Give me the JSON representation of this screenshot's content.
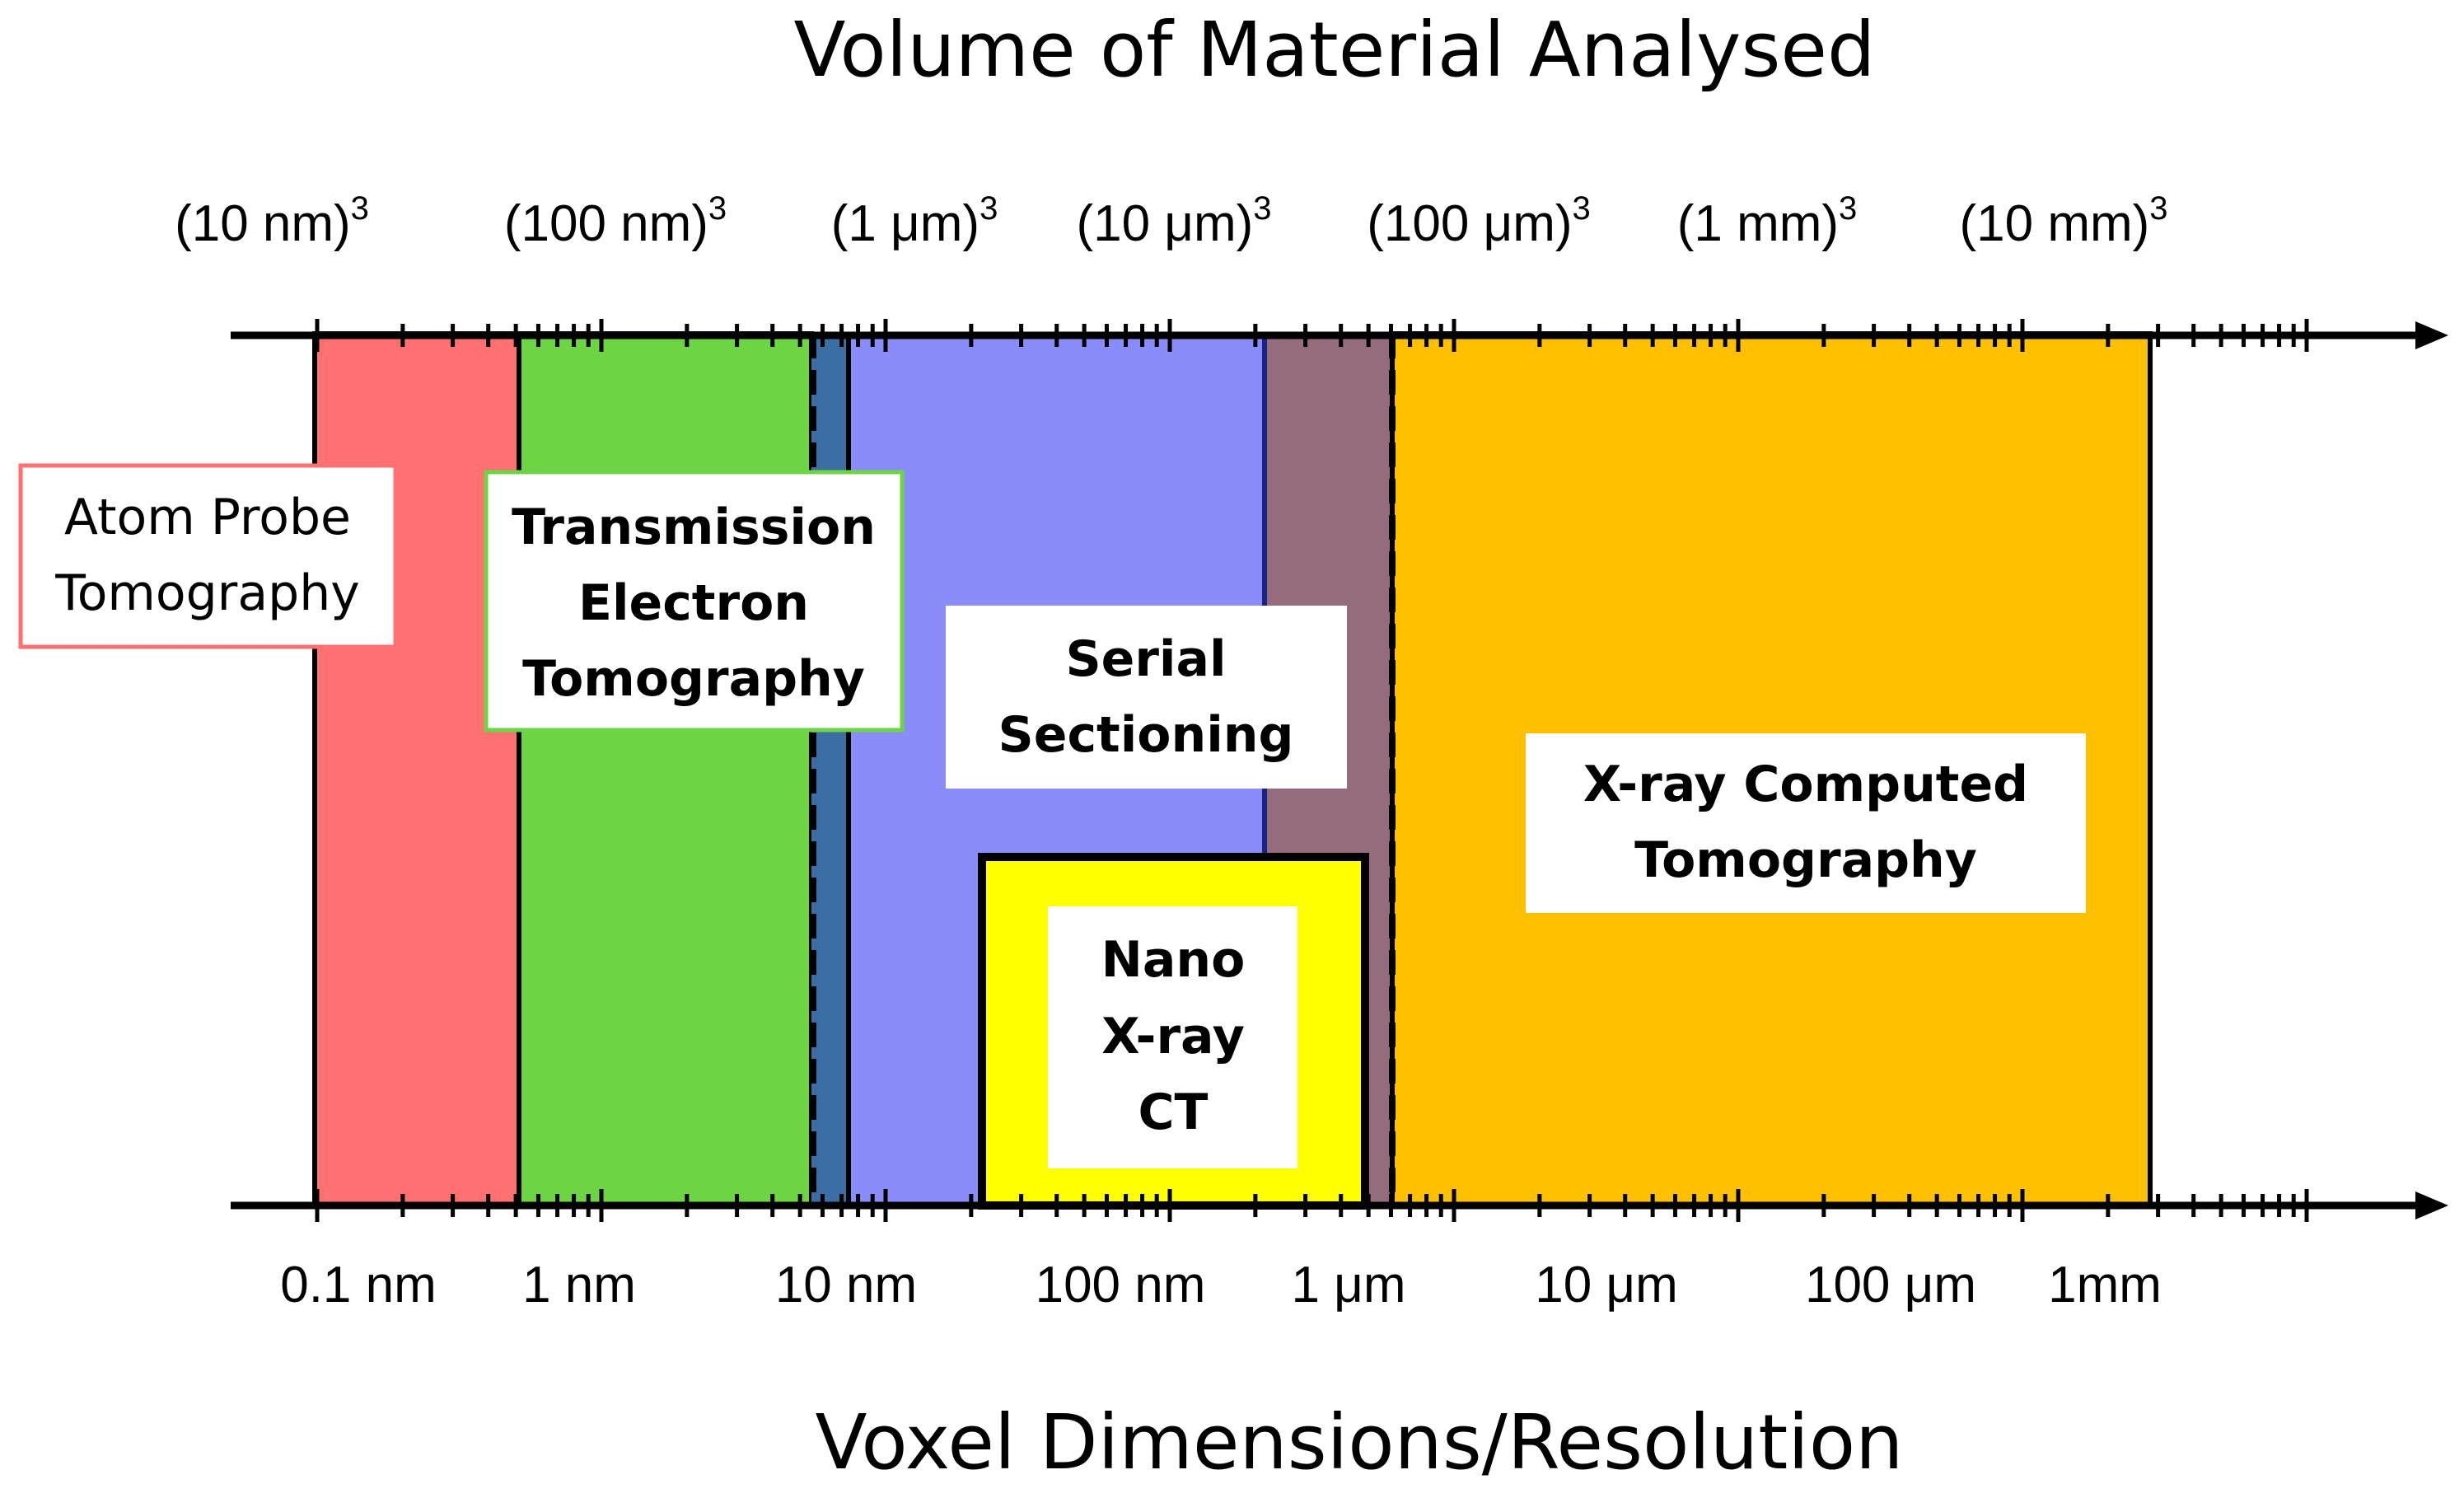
{
  "title_top": "Volume of Material Analysed",
  "title_bottom": "Voxel Dimensions/Resolution",
  "volume_labels": [
    {
      "base": "(10 nm)",
      "exp": "3"
    },
    {
      "base": "(100 nm)",
      "exp": "3"
    },
    {
      "base": "(1 μm)",
      "exp": "3"
    },
    {
      "base": "(10 μm)",
      "exp": "3"
    },
    {
      "base": "(100 μm)",
      "exp": "3"
    },
    {
      "base": "(1 mm)",
      "exp": "3"
    },
    {
      "base": "(10 mm)",
      "exp": "3"
    }
  ],
  "resolution_labels": [
    "0.1 nm",
    "1 nm",
    "10 nm",
    "100 nm",
    "1 μm",
    "10 μm",
    "100 μm",
    "1mm"
  ],
  "techniques": {
    "atom_probe": {
      "lines": [
        "Atom Probe",
        "Tomography"
      ],
      "color": "#ff7070",
      "border": "#ff7070"
    },
    "tem": {
      "lines": [
        "Transmission",
        "Electron",
        "Tomography"
      ],
      "color": "#6dd444",
      "border": "#6dd444"
    },
    "serial": {
      "lines": [
        "Serial",
        "Sectioning"
      ],
      "color": "#8a8cfa"
    },
    "nano_ct": {
      "lines": [
        "Nano",
        "X-ray",
        "CT"
      ],
      "color": "#ffff00"
    },
    "xct": {
      "lines": [
        "X-ray Computed",
        "Tomography"
      ],
      "color": "#ffc000"
    },
    "tem_serial_overlap": {
      "color": "#3b6ea5"
    },
    "serial_xct_overlap": {
      "color": "#956b7e"
    }
  }
}
